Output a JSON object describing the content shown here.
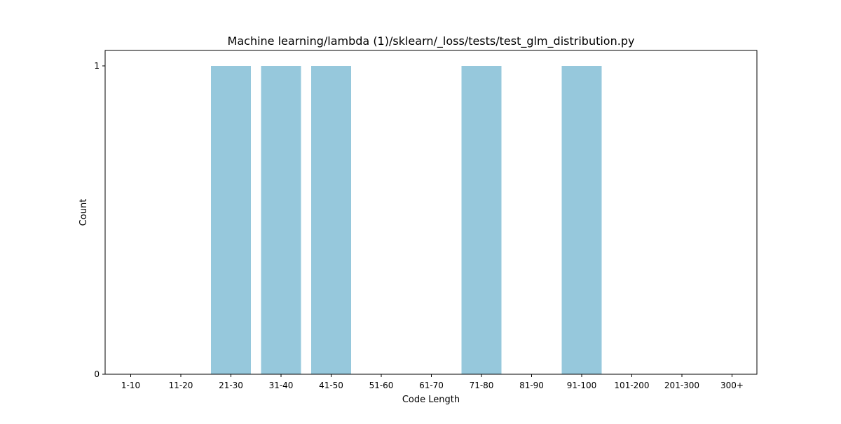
{
  "chart_data": {
    "type": "bar",
    "title": "Machine learning/lambda (1)/sklearn/_loss/tests/test_glm_distribution.py",
    "xlabel": "Code Length",
    "ylabel": "Count",
    "categories": [
      "1-10",
      "11-20",
      "21-30",
      "31-40",
      "41-50",
      "51-60",
      "61-70",
      "71-80",
      "81-90",
      "91-100",
      "101-200",
      "201-300",
      "300+"
    ],
    "values": [
      0,
      0,
      1,
      1,
      1,
      0,
      0,
      1,
      0,
      1,
      0,
      0,
      0
    ],
    "ylim": [
      0,
      1.05
    ],
    "yticks": [
      "0",
      "1"
    ],
    "bar_color": "#96c8dc",
    "grid": false,
    "legend": "none"
  }
}
